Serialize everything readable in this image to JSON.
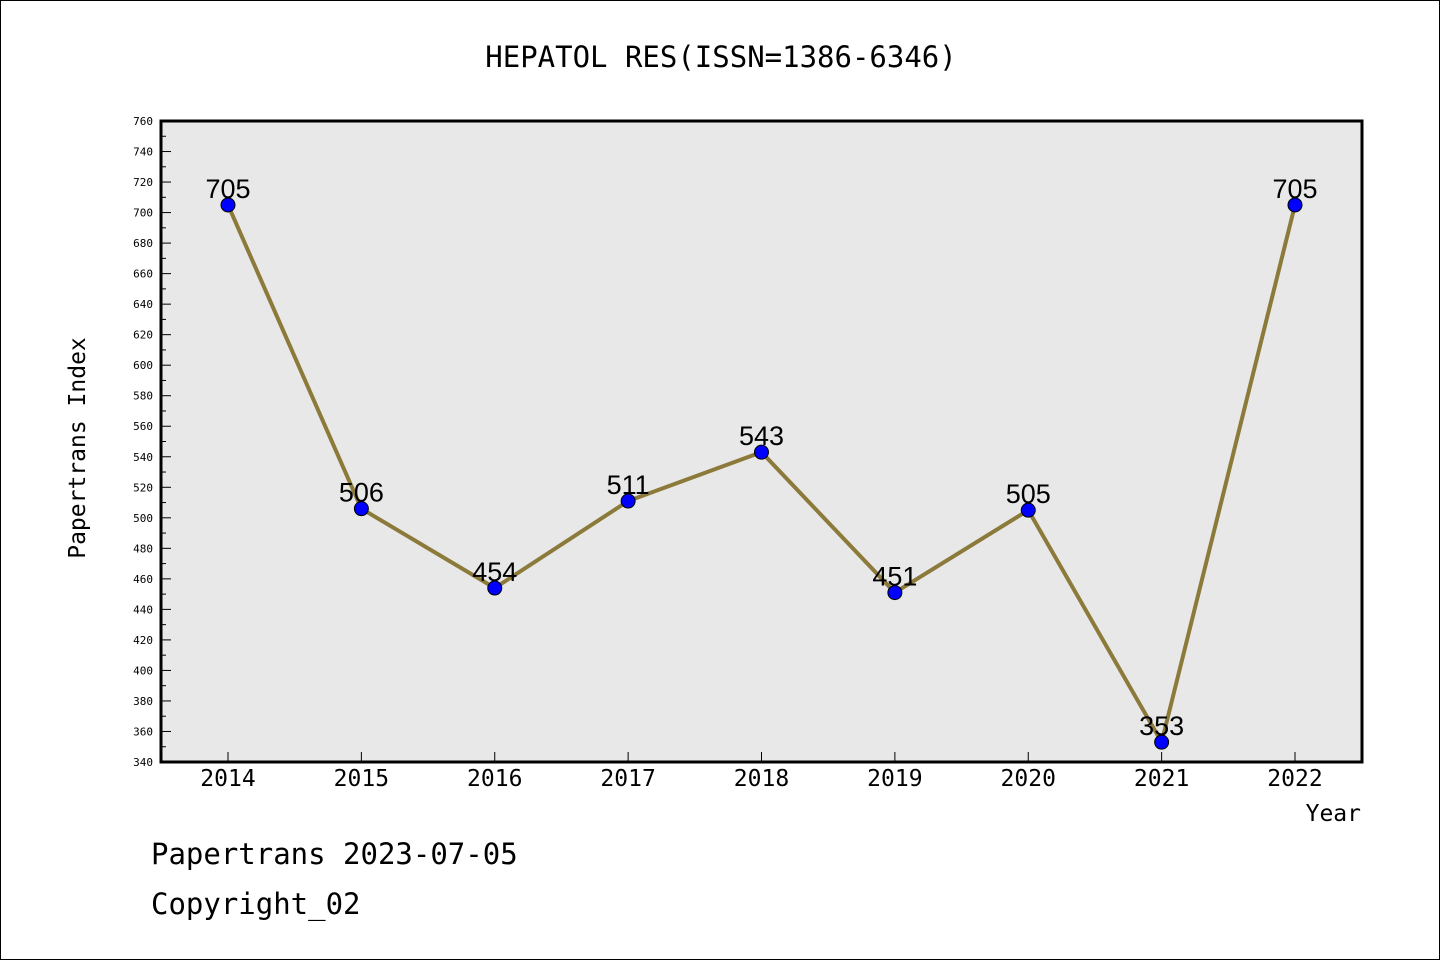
{
  "footer": {
    "line1": "Papertrans 2023-07-05",
    "line2": "Copyright_02"
  },
  "chart_data": {
    "type": "line",
    "title": "HEPATOL RES(ISSN=1386-6346)",
    "xlabel": "Year",
    "ylabel": "Papertrans Index",
    "categories": [
      "2014",
      "2015",
      "2016",
      "2017",
      "2018",
      "2019",
      "2020",
      "2021",
      "2022"
    ],
    "series": [
      {
        "values": [
          705,
          506,
          454,
          511,
          543,
          451,
          505,
          353,
          705
        ]
      }
    ],
    "ylim": [
      340,
      760
    ],
    "ytick_step": 20,
    "yminor_step": 10,
    "data_labels": [
      "705",
      "506",
      "454",
      "511",
      "543",
      "451",
      "505",
      "353",
      "705"
    ],
    "line_color": "#8c7a3a",
    "marker_color": "#0000ff",
    "plot_background": "#e8e8e8",
    "grid": false,
    "legend": "none"
  }
}
